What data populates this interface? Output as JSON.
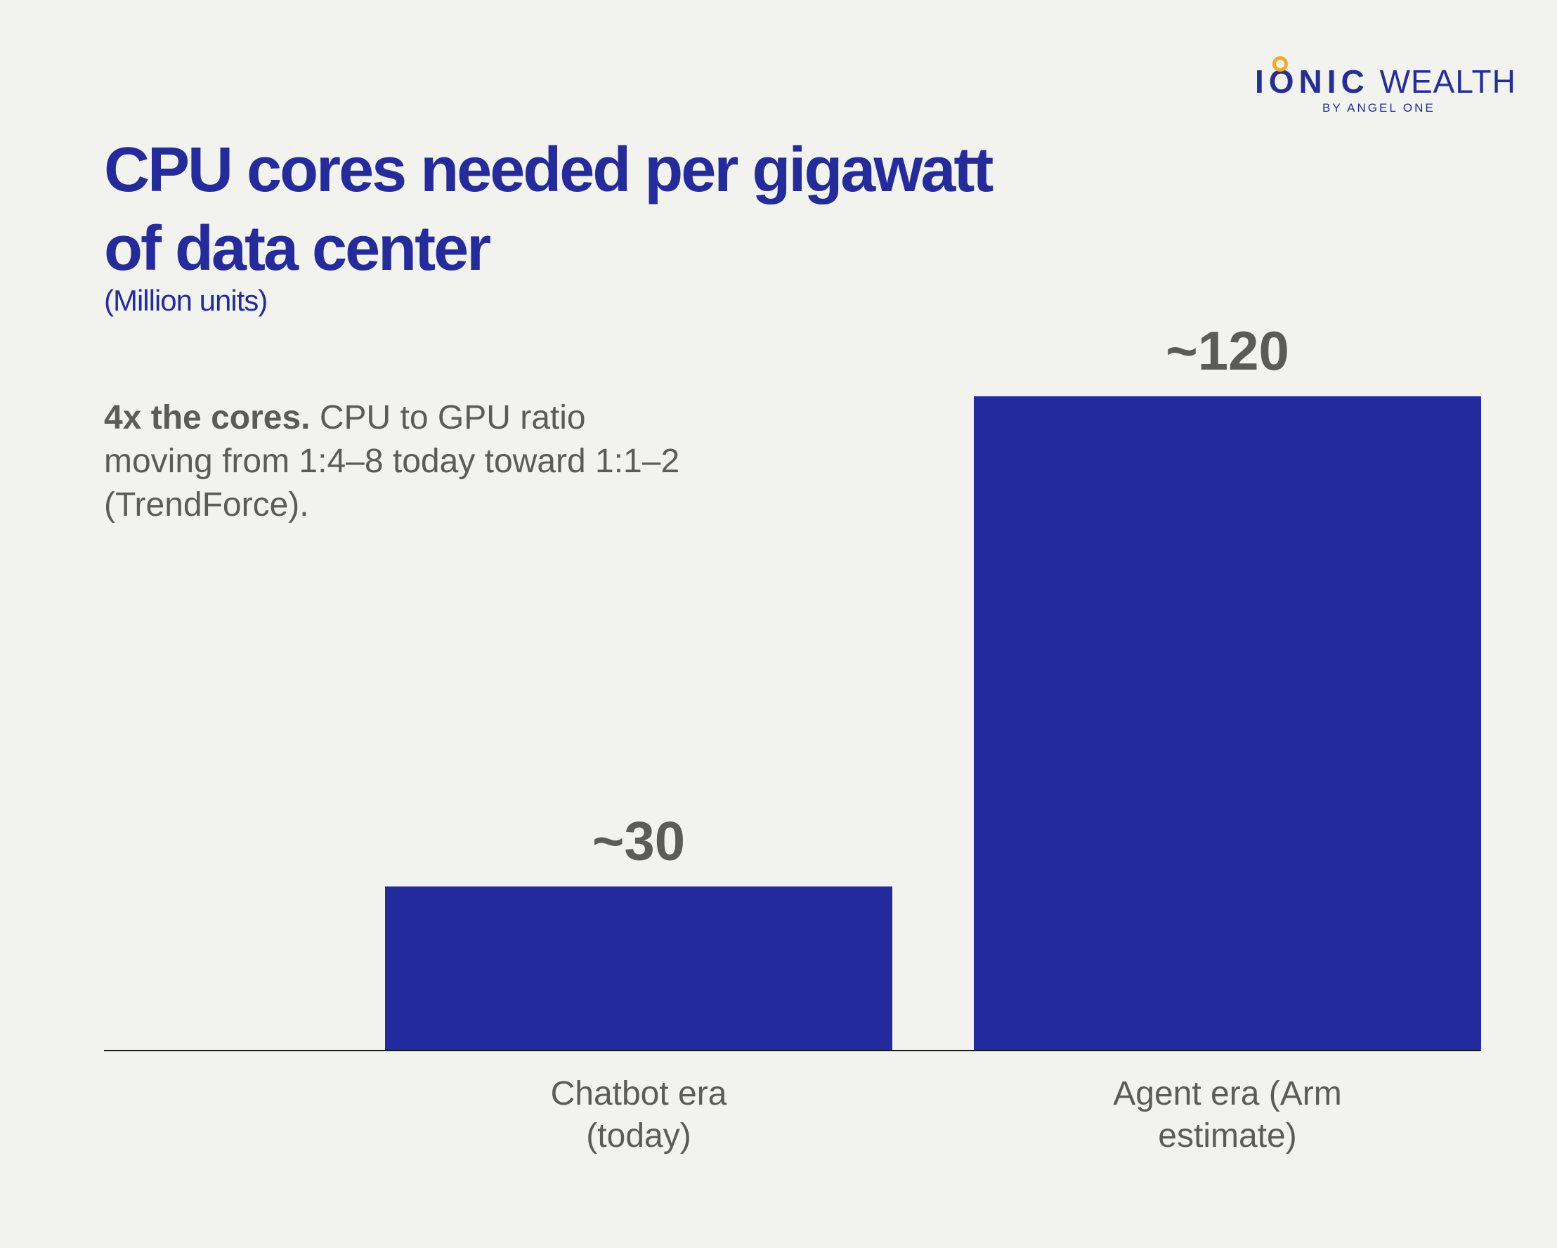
{
  "logo": {
    "ionic": "IONIC",
    "wealth": "WEALTH",
    "sub": "BY ANGEL ONE"
  },
  "title": "CPU cores needed per gigawatt of data center",
  "subtitle": "(Million units)",
  "annotation": {
    "bold": "4x the cores.",
    "text": "CPU to GPU ratio moving from 1:4–8 today toward 1:1–2 (TrendForce)."
  },
  "colors": {
    "bar": "#232a9d",
    "value_label": "#5b5b57",
    "category_label": "#5b5b57",
    "axis": "#1a1a1a",
    "logo_accent": "#f2a92c"
  },
  "chart_data": {
    "type": "bar",
    "categories": [
      "Chatbot era (today)",
      "Agent era (Arm estimate)"
    ],
    "category_lines": [
      [
        "Chatbot era",
        "(today)"
      ],
      [
        "Agent era (Arm",
        "estimate)"
      ]
    ],
    "values": [
      30,
      120
    ],
    "value_labels": [
      "~30",
      "~120"
    ],
    "title": "CPU cores needed per gigawatt of data center",
    "ylabel": "",
    "ylim": [
      0,
      120
    ],
    "grid": false,
    "legend": "none"
  }
}
